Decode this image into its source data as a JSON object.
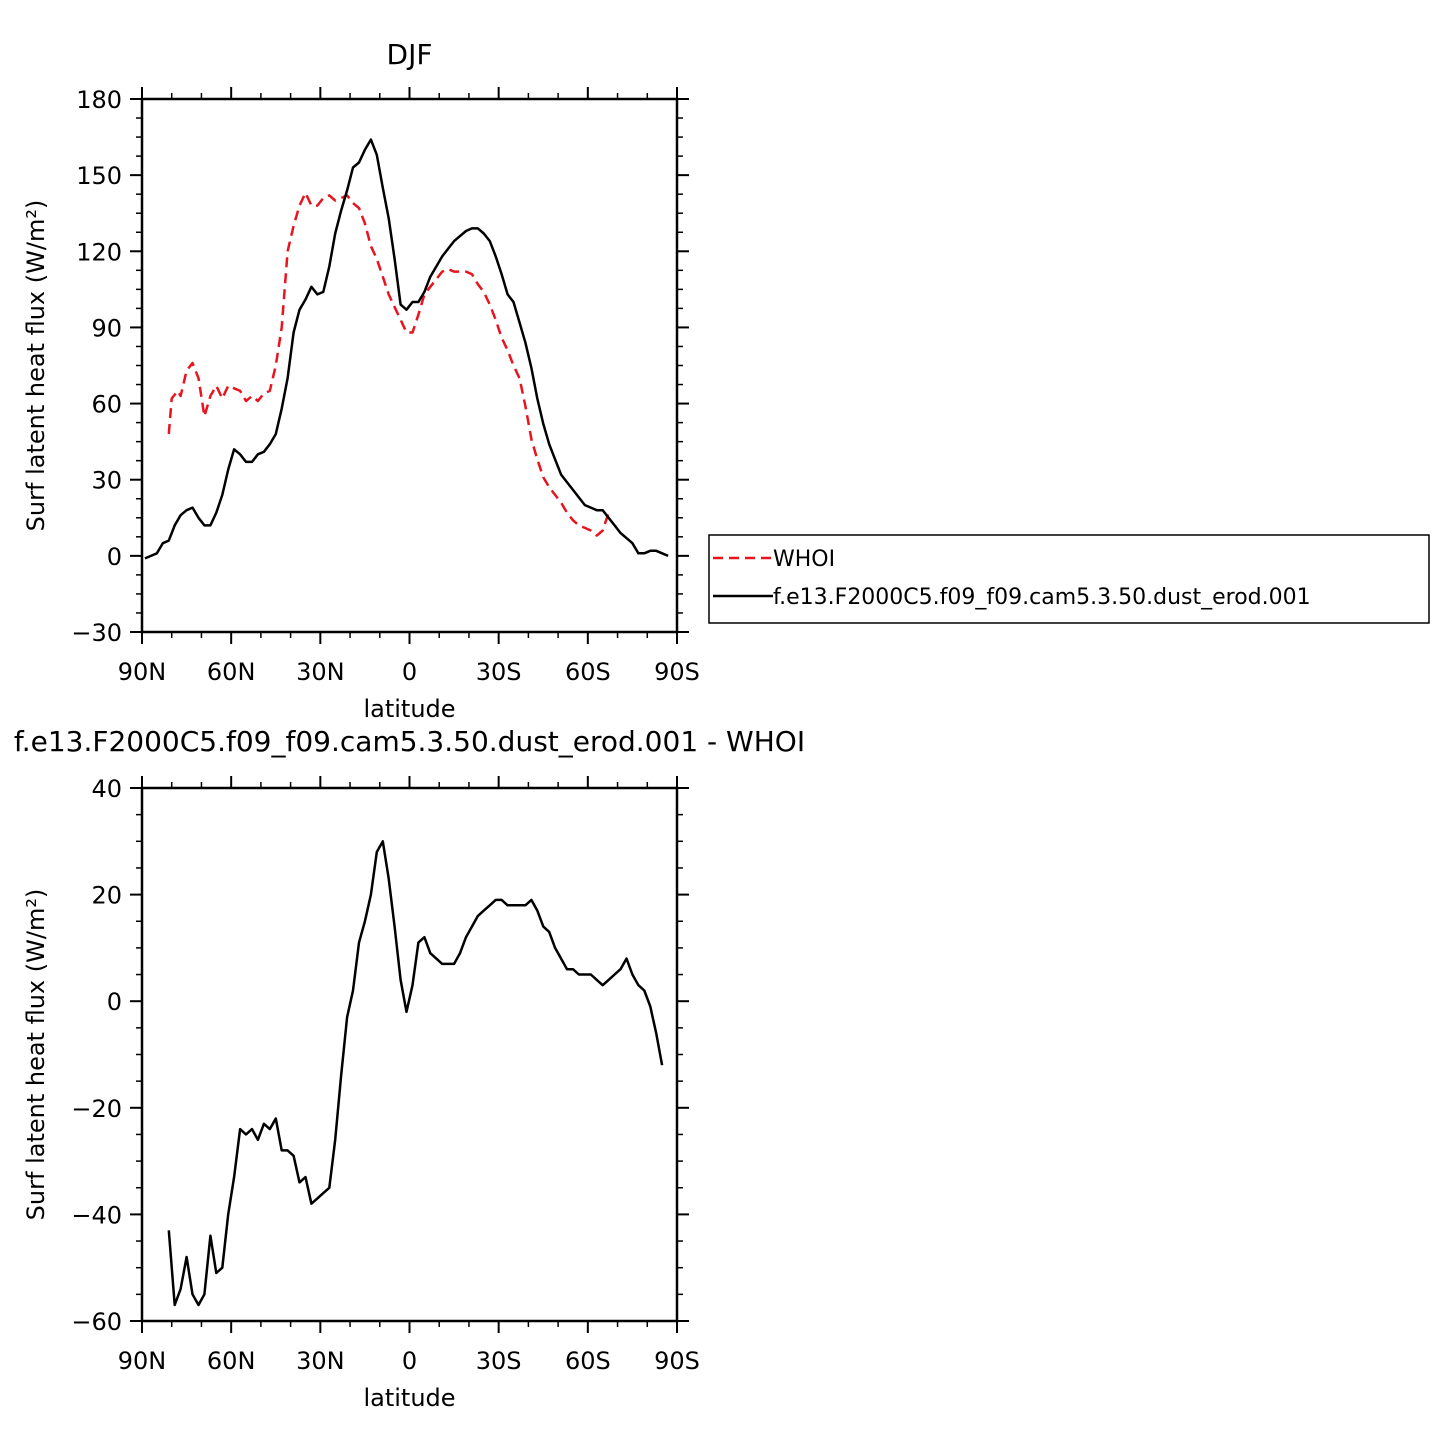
{
  "chart_data": [
    {
      "type": "line",
      "title": "DJF",
      "xlabel": "latitude",
      "ylabel": "Surf latent heat flux (W/m²)",
      "ylim": [
        -30,
        180
      ],
      "xlim": [
        90,
        -90
      ],
      "yticks": [
        -30,
        0,
        30,
        60,
        90,
        120,
        150,
        180
      ],
      "xticks": [
        {
          "value": 90,
          "label": "90N"
        },
        {
          "value": 60,
          "label": "60N"
        },
        {
          "value": 30,
          "label": "30N"
        },
        {
          "value": 0,
          "label": "0"
        },
        {
          "value": -30,
          "label": "30S"
        },
        {
          "value": -60,
          "label": "60S"
        },
        {
          "value": -90,
          "label": "90S"
        }
      ],
      "legend_position": "right",
      "series": [
        {
          "name": "WHOI",
          "color": "#e8141e",
          "dash": "dashed",
          "points": [
            [
              81,
              48
            ],
            [
              80,
              62
            ],
            [
              78,
              65
            ],
            [
              77,
              63
            ],
            [
              75,
              73
            ],
            [
              73,
              76
            ],
            [
              71,
              70
            ],
            [
              69,
              55
            ],
            [
              67,
              63
            ],
            [
              65,
              67
            ],
            [
              63,
              62
            ],
            [
              61,
              67
            ],
            [
              59,
              66
            ],
            [
              57,
              65
            ],
            [
              55,
              61
            ],
            [
              53,
              63
            ],
            [
              51,
              61
            ],
            [
              49,
              64
            ],
            [
              47,
              65
            ],
            [
              45,
              75
            ],
            [
              43,
              90
            ],
            [
              41,
              120
            ],
            [
              39,
              130
            ],
            [
              37,
              138
            ],
            [
              35,
              143
            ],
            [
              33,
              138
            ],
            [
              31,
              138
            ],
            [
              29,
              141
            ],
            [
              27,
              142
            ],
            [
              25,
              140
            ],
            [
              23,
              141
            ],
            [
              21,
              142
            ],
            [
              19,
              139
            ],
            [
              17,
              137
            ],
            [
              15,
              131
            ],
            [
              13,
              122
            ],
            [
              11,
              117
            ],
            [
              9,
              110
            ],
            [
              7,
              103
            ],
            [
              5,
              98
            ],
            [
              3,
              93
            ],
            [
              1,
              88
            ],
            [
              -1,
              88
            ],
            [
              -3,
              95
            ],
            [
              -5,
              103
            ],
            [
              -7,
              106
            ],
            [
              -9,
              109
            ],
            [
              -11,
              112
            ],
            [
              -13,
              113
            ],
            [
              -15,
              112
            ],
            [
              -17,
              112
            ],
            [
              -19,
              112
            ],
            [
              -21,
              111
            ],
            [
              -23,
              107
            ],
            [
              -25,
              104
            ],
            [
              -27,
              99
            ],
            [
              -29,
              93
            ],
            [
              -31,
              86
            ],
            [
              -33,
              81
            ],
            [
              -35,
              75
            ],
            [
              -37,
              70
            ],
            [
              -39,
              59
            ],
            [
              -41,
              46
            ],
            [
              -43,
              38
            ],
            [
              -45,
              31
            ],
            [
              -47,
              27
            ],
            [
              -49,
              24
            ],
            [
              -51,
              21
            ],
            [
              -53,
              17
            ],
            [
              -55,
              14
            ],
            [
              -57,
              12
            ],
            [
              -59,
              11
            ],
            [
              -61,
              10
            ],
            [
              -63,
              8
            ],
            [
              -65,
              10
            ],
            [
              -67,
              17
            ]
          ]
        },
        {
          "name": "f.e13.F2000C5.f09_f09.cam5.3.50.dust_erod.001",
          "color": "#000000",
          "dash": "solid",
          "points": [
            [
              89,
              -1
            ],
            [
              87,
              0
            ],
            [
              85,
              1
            ],
            [
              83,
              5
            ],
            [
              81,
              6
            ],
            [
              79,
              12
            ],
            [
              77,
              16
            ],
            [
              75,
              18
            ],
            [
              73,
              19
            ],
            [
              71,
              15
            ],
            [
              69,
              12
            ],
            [
              67,
              12
            ],
            [
              65,
              17
            ],
            [
              63,
              24
            ],
            [
              61,
              34
            ],
            [
              59,
              42
            ],
            [
              57,
              40
            ],
            [
              55,
              37
            ],
            [
              53,
              37
            ],
            [
              51,
              40
            ],
            [
              49,
              41
            ],
            [
              47,
              44
            ],
            [
              45,
              48
            ],
            [
              43,
              58
            ],
            [
              41,
              70
            ],
            [
              39,
              88
            ],
            [
              37,
              97
            ],
            [
              35,
              101
            ],
            [
              33,
              106
            ],
            [
              31,
              103
            ],
            [
              29,
              104
            ],
            [
              27,
              114
            ],
            [
              25,
              127
            ],
            [
              23,
              136
            ],
            [
              21,
              144
            ],
            [
              19,
              153
            ],
            [
              17,
              155
            ],
            [
              15,
              160
            ],
            [
              13,
              164
            ],
            [
              11,
              158
            ],
            [
              9,
              145
            ],
            [
              7,
              133
            ],
            [
              5,
              117
            ],
            [
              3,
              99
            ],
            [
              1,
              97
            ],
            [
              -1,
              100
            ],
            [
              -3,
              100
            ],
            [
              -5,
              104
            ],
            [
              -7,
              110
            ],
            [
              -9,
              114
            ],
            [
              -11,
              118
            ],
            [
              -13,
              121
            ],
            [
              -15,
              124
            ],
            [
              -17,
              126
            ],
            [
              -19,
              128
            ],
            [
              -21,
              129
            ],
            [
              -23,
              129
            ],
            [
              -25,
              127
            ],
            [
              -27,
              124
            ],
            [
              -29,
              118
            ],
            [
              -31,
              111
            ],
            [
              -33,
              103
            ],
            [
              -35,
              100
            ],
            [
              -37,
              92
            ],
            [
              -39,
              84
            ],
            [
              -41,
              74
            ],
            [
              -43,
              62
            ],
            [
              -45,
              52
            ],
            [
              -47,
              44
            ],
            [
              -49,
              38
            ],
            [
              -51,
              32
            ],
            [
              -53,
              29
            ],
            [
              -55,
              26
            ],
            [
              -57,
              23
            ],
            [
              -59,
              20
            ],
            [
              -61,
              19
            ],
            [
              -63,
              18
            ],
            [
              -65,
              18
            ],
            [
              -67,
              15
            ],
            [
              -69,
              12
            ],
            [
              -71,
              9
            ],
            [
              -73,
              7
            ],
            [
              -75,
              5
            ],
            [
              -77,
              1
            ],
            [
              -79,
              1
            ],
            [
              -81,
              2
            ],
            [
              -83,
              2
            ],
            [
              -85,
              1
            ],
            [
              -87,
              0
            ]
          ]
        }
      ]
    },
    {
      "type": "line",
      "title": "f.e13.F2000C5.f09_f09.cam5.3.50.dust_erod.001 - WHOI",
      "xlabel": "latitude",
      "ylabel": "Surf latent heat flux (W/m²)",
      "ylim": [
        -60,
        40
      ],
      "xlim": [
        90,
        -90
      ],
      "yticks": [
        -60,
        -40,
        -20,
        0,
        20,
        40
      ],
      "xticks": [
        {
          "value": 90,
          "label": "90N"
        },
        {
          "value": 60,
          "label": "60N"
        },
        {
          "value": 30,
          "label": "30N"
        },
        {
          "value": 0,
          "label": "0"
        },
        {
          "value": -30,
          "label": "30S"
        },
        {
          "value": -60,
          "label": "60S"
        },
        {
          "value": -90,
          "label": "90S"
        }
      ],
      "series": [
        {
          "color": "#000000",
          "dash": "solid",
          "points": [
            [
              81,
              -43
            ],
            [
              79,
              -57
            ],
            [
              77,
              -54
            ],
            [
              75,
              -48
            ],
            [
              73,
              -55
            ],
            [
              71,
              -57
            ],
            [
              69,
              -55
            ],
            [
              67,
              -44
            ],
            [
              65,
              -51
            ],
            [
              63,
              -50
            ],
            [
              61,
              -40
            ],
            [
              59,
              -33
            ],
            [
              57,
              -24
            ],
            [
              55,
              -25
            ],
            [
              53,
              -24
            ],
            [
              51,
              -26
            ],
            [
              49,
              -23
            ],
            [
              47,
              -24
            ],
            [
              45,
              -22
            ],
            [
              43,
              -28
            ],
            [
              41,
              -28
            ],
            [
              39,
              -29
            ],
            [
              37,
              -34
            ],
            [
              35,
              -33
            ],
            [
              33,
              -38
            ],
            [
              31,
              -37
            ],
            [
              29,
              -36
            ],
            [
              27,
              -35
            ],
            [
              25,
              -26
            ],
            [
              23,
              -14
            ],
            [
              21,
              -3
            ],
            [
              19,
              2
            ],
            [
              17,
              11
            ],
            [
              15,
              15
            ],
            [
              13,
              20
            ],
            [
              11,
              28
            ],
            [
              9,
              30
            ],
            [
              7,
              23
            ],
            [
              5,
              14
            ],
            [
              3,
              4
            ],
            [
              1,
              -2
            ],
            [
              -1,
              3
            ],
            [
              -3,
              11
            ],
            [
              -5,
              12
            ],
            [
              -7,
              9
            ],
            [
              -9,
              8
            ],
            [
              -11,
              7
            ],
            [
              -13,
              7
            ],
            [
              -15,
              7
            ],
            [
              -17,
              9
            ],
            [
              -19,
              12
            ],
            [
              -21,
              14
            ],
            [
              -23,
              16
            ],
            [
              -25,
              17
            ],
            [
              -27,
              18
            ],
            [
              -29,
              19
            ],
            [
              -31,
              19
            ],
            [
              -33,
              18
            ],
            [
              -35,
              18
            ],
            [
              -37,
              18
            ],
            [
              -39,
              18
            ],
            [
              -41,
              19
            ],
            [
              -43,
              17
            ],
            [
              -45,
              14
            ],
            [
              -47,
              13
            ],
            [
              -49,
              10
            ],
            [
              -51,
              8
            ],
            [
              -53,
              6
            ],
            [
              -55,
              6
            ],
            [
              -57,
              5
            ],
            [
              -59,
              5
            ],
            [
              -61,
              5
            ],
            [
              -63,
              4
            ],
            [
              -65,
              3
            ],
            [
              -67,
              4
            ],
            [
              -69,
              5
            ],
            [
              -71,
              6
            ],
            [
              -73,
              8
            ],
            [
              -75,
              5
            ],
            [
              -77,
              3
            ],
            [
              -79,
              2
            ],
            [
              -81,
              -1
            ],
            [
              -83,
              -6
            ],
            [
              -85,
              -12
            ]
          ]
        }
      ]
    }
  ]
}
